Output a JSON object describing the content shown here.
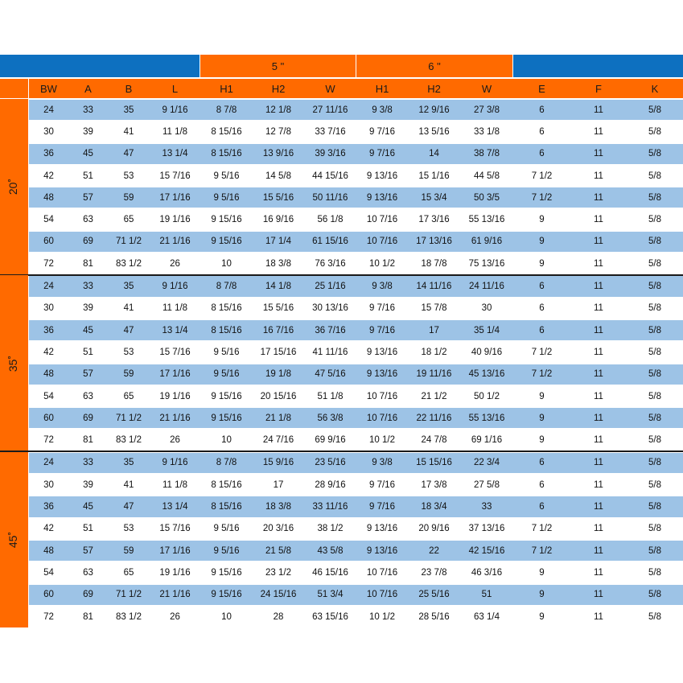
{
  "header_groups": [
    {
      "label": "",
      "color": "blue",
      "span": [
        "BW",
        "L"
      ]
    },
    {
      "label": "5 \"",
      "color": "orange",
      "span": [
        "H1",
        "W"
      ]
    },
    {
      "label": "6 \"",
      "color": "orange",
      "span": [
        "H1",
        "W"
      ]
    },
    {
      "label": "",
      "color": "blue",
      "span": [
        "E",
        "K"
      ]
    }
  ],
  "columns": [
    "BW",
    "A",
    "B",
    "L",
    "H1",
    "H2",
    "W",
    "H1",
    "H2",
    "W",
    "E",
    "F",
    "K"
  ],
  "sections": [
    {
      "angle": "20˚",
      "rows": [
        [
          "24",
          "33",
          "35",
          "9 1/16",
          "8 7/8",
          "12 1/8",
          "27 11/16",
          "9 3/8",
          "12 9/16",
          "27 3/8",
          "6",
          "11",
          "5/8"
        ],
        [
          "30",
          "39",
          "41",
          "11 1/8",
          "8 15/16",
          "12 7/8",
          "33 7/16",
          "9 7/16",
          "13 5/16",
          "33 1/8",
          "6",
          "11",
          "5/8"
        ],
        [
          "36",
          "45",
          "47",
          "13 1/4",
          "8 15/16",
          "13 9/16",
          "39 3/16",
          "9 7/16",
          "14",
          "38 7/8",
          "6",
          "11",
          "5/8"
        ],
        [
          "42",
          "51",
          "53",
          "15 7/16",
          "9 5/16",
          "14 5/8",
          "44 15/16",
          "9 13/16",
          "15 1/16",
          "44 5/8",
          "7 1/2",
          "11",
          "5/8"
        ],
        [
          "48",
          "57",
          "59",
          "17 1/16",
          "9 5/16",
          "15 5/16",
          "50 11/16",
          "9 13/16",
          "15 3/4",
          "50 3/5",
          "7 1/2",
          "11",
          "5/8"
        ],
        [
          "54",
          "63",
          "65",
          "19 1/16",
          "9 15/16",
          "16 9/16",
          "56 1/8",
          "10 7/16",
          "17 3/16",
          "55 13/16",
          "9",
          "11",
          "5/8"
        ],
        [
          "60",
          "69",
          "71 1/2",
          "21 1/16",
          "9 15/16",
          "17 1/4",
          "61 15/16",
          "10 7/16",
          "17 13/16",
          "61 9/16",
          "9",
          "11",
          "5/8"
        ],
        [
          "72",
          "81",
          "83 1/2",
          "26",
          "10",
          "18 3/8",
          "76 3/16",
          "10 1/2",
          "18 7/8",
          "75 13/16",
          "9",
          "11",
          "5/8"
        ]
      ]
    },
    {
      "angle": "35˚",
      "rows": [
        [
          "24",
          "33",
          "35",
          "9 1/16",
          "8 7/8",
          "14 1/8",
          "25 1/16",
          "9 3/8",
          "14 11/16",
          "24 11/16",
          "6",
          "11",
          "5/8"
        ],
        [
          "30",
          "39",
          "41",
          "11 1/8",
          "8 15/16",
          "15 5/16",
          "30 13/16",
          "9 7/16",
          "15 7/8",
          "30",
          "6",
          "11",
          "5/8"
        ],
        [
          "36",
          "45",
          "47",
          "13 1/4",
          "8 15/16",
          "16 7/16",
          "36 7/16",
          "9 7/16",
          "17",
          "35 1/4",
          "6",
          "11",
          "5/8"
        ],
        [
          "42",
          "51",
          "53",
          "15 7/16",
          "9 5/16",
          "17 15/16",
          "41 11/16",
          "9 13/16",
          "18 1/2",
          "40 9/16",
          "7 1/2",
          "11",
          "5/8"
        ],
        [
          "48",
          "57",
          "59",
          "17 1/16",
          "9 5/16",
          "19 1/8",
          "47 5/16",
          "9 13/16",
          "19 11/16",
          "45 13/16",
          "7 1/2",
          "11",
          "5/8"
        ],
        [
          "54",
          "63",
          "65",
          "19 1/16",
          "9 15/16",
          "20 15/16",
          "51 1/8",
          "10 7/16",
          "21 1/2",
          "50 1/2",
          "9",
          "11",
          "5/8"
        ],
        [
          "60",
          "69",
          "71 1/2",
          "21 1/16",
          "9 15/16",
          "21 1/8",
          "56 3/8",
          "10 7/16",
          "22 11/16",
          "55 13/16",
          "9",
          "11",
          "5/8"
        ],
        [
          "72",
          "81",
          "83 1/2",
          "26",
          "10",
          "24 7/16",
          "69 9/16",
          "10 1/2",
          "24 7/8",
          "69 1/16",
          "9",
          "11",
          "5/8"
        ]
      ]
    },
    {
      "angle": "45˚",
      "rows": [
        [
          "24",
          "33",
          "35",
          "9 1/16",
          "8 7/8",
          "15 9/16",
          "23 5/16",
          "9 3/8",
          "15 15/16",
          "22 3/4",
          "6",
          "11",
          "5/8"
        ],
        [
          "30",
          "39",
          "41",
          "11 1/8",
          "8 15/16",
          "17",
          "28 9/16",
          "9 7/16",
          "17 3/8",
          "27 5/8",
          "6",
          "11",
          "5/8"
        ],
        [
          "36",
          "45",
          "47",
          "13 1/4",
          "8 15/16",
          "18 3/8",
          "33 11/16",
          "9 7/16",
          "18 3/4",
          "33",
          "6",
          "11",
          "5/8"
        ],
        [
          "42",
          "51",
          "53",
          "15 7/16",
          "9 5/16",
          "20 3/16",
          "38 1/2",
          "9 13/16",
          "20 9/16",
          "37 13/16",
          "7 1/2",
          "11",
          "5/8"
        ],
        [
          "48",
          "57",
          "59",
          "17 1/16",
          "9 5/16",
          "21 5/8",
          "43 5/8",
          "9 13/16",
          "22",
          "42 15/16",
          "7 1/2",
          "11",
          "5/8"
        ],
        [
          "54",
          "63",
          "65",
          "19 1/16",
          "9 15/16",
          "23 1/2",
          "46 15/16",
          "10 7/16",
          "23 7/8",
          "46 3/16",
          "9",
          "11",
          "5/8"
        ],
        [
          "60",
          "69",
          "71 1/2",
          "21 1/16",
          "9 15/16",
          "24 15/16",
          "51 3/4",
          "10 7/16",
          "25 5/16",
          "51",
          "9",
          "11",
          "5/8"
        ],
        [
          "72",
          "81",
          "83 1/2",
          "26",
          "10",
          "28",
          "63 15/16",
          "10 1/2",
          "28 5/16",
          "63 1/4",
          "9",
          "11",
          "5/8"
        ]
      ]
    }
  ],
  "colors": {
    "orange": "#ff6a00",
    "blue": "#0d70c0",
    "band": "#9dc3e6",
    "separator": "#1a1a1a"
  }
}
